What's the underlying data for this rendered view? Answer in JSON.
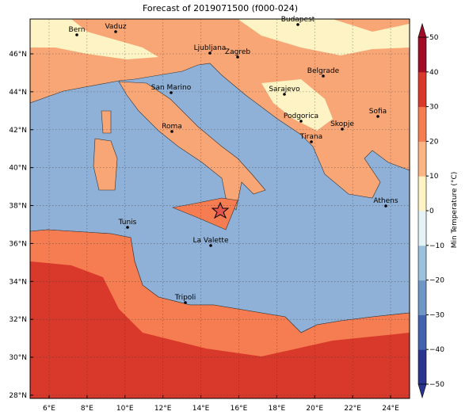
{
  "title": "Forecast of 2019071500 (f000-024)",
  "cities": [
    "Bern",
    "Vaduz",
    "Budapest",
    "Ljubljana",
    "Zagreb",
    "Belgrade",
    "San Marino",
    "Sarajevo",
    "Sofia",
    "Podgorica",
    "Skopje",
    "Roma",
    "Tirana",
    "Athens",
    "Tunis",
    "La Valette",
    "Tripoli"
  ],
  "lon_ticks": [
    {
      "value": 6,
      "label": "6°E"
    },
    {
      "value": 8,
      "label": "8°E"
    },
    {
      "value": 10,
      "label": "10°E"
    },
    {
      "value": 12,
      "label": "12°E"
    },
    {
      "value": 14,
      "label": "14°E"
    },
    {
      "value": 16,
      "label": "16°E"
    },
    {
      "value": 18,
      "label": "18°E"
    },
    {
      "value": 20,
      "label": "20°E"
    },
    {
      "value": 22,
      "label": "22°E"
    },
    {
      "value": 24,
      "label": "24°E"
    }
  ],
  "lat_ticks": [
    {
      "value": 28,
      "label": "28°N"
    },
    {
      "value": 30,
      "label": "30°N"
    },
    {
      "value": 32,
      "label": "32°N"
    },
    {
      "value": 34,
      "label": "34°N"
    },
    {
      "value": 36,
      "label": "36°N"
    },
    {
      "value": 38,
      "label": "38°N"
    },
    {
      "value": 40,
      "label": "40°N"
    },
    {
      "value": 42,
      "label": "42°N"
    },
    {
      "value": 44,
      "label": "44°N"
    },
    {
      "value": 46,
      "label": "46°N"
    }
  ],
  "colorbar": {
    "label": "Min Temperature (°C)",
    "ticks": [
      {
        "value": -50,
        "label": "−50"
      },
      {
        "value": -40,
        "label": "−40"
      },
      {
        "value": -30,
        "label": "−30"
      },
      {
        "value": -20,
        "label": "−20"
      },
      {
        "value": -10,
        "label": "−10"
      },
      0,
      10,
      20,
      30,
      40,
      50
    ],
    "colors": [
      "#2a3590",
      "#4363ad",
      "#6f97c6",
      "#9cc1dd",
      "#e3f3f6",
      "#fdf3c4",
      "#fbb585",
      "#f57d51",
      "#d9392a",
      "#a10d26"
    ]
  }
}
